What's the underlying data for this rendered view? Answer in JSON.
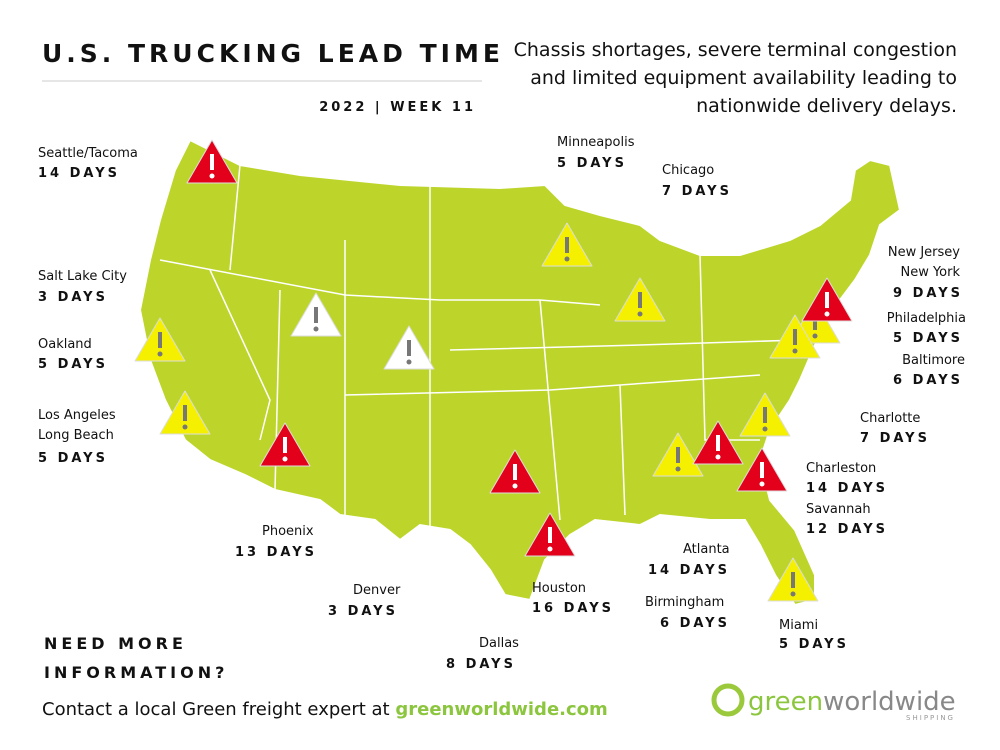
{
  "header": {
    "title": "U.S. TRUCKING LEAD TIME",
    "week": "2022 | WEEK 11",
    "description": [
      "Chassis shortages, severe terminal congestion",
      "and limited equipment availability leading to",
      "nationwide delivery delays."
    ]
  },
  "cities": [
    {
      "name": [
        "Seattle/Tacoma"
      ],
      "days": "14 DAYS"
    },
    {
      "name": [
        "Salt Lake City"
      ],
      "days": "3 DAYS"
    },
    {
      "name": [
        "Oakland"
      ],
      "days": "5 DAYS"
    },
    {
      "name": [
        "Los Angeles",
        "Long Beach"
      ],
      "days": "5 DAYS"
    },
    {
      "name": [
        "Phoenix"
      ],
      "days": "13 DAYS"
    },
    {
      "name": [
        "Denver"
      ],
      "days": "3 DAYS"
    },
    {
      "name": [
        "Dallas"
      ],
      "days": "8 DAYS"
    },
    {
      "name": [
        "Houston"
      ],
      "days": "16 DAYS"
    },
    {
      "name": [
        "Minneapolis"
      ],
      "days": "5 DAYS"
    },
    {
      "name": [
        "Chicago"
      ],
      "days": "7 DAYS"
    },
    {
      "name": [
        "New Jersey",
        "New York"
      ],
      "days": "9 DAYS"
    },
    {
      "name": [
        "Philadelphia"
      ],
      "days": "5 DAYS"
    },
    {
      "name": [
        "Baltimore"
      ],
      "days": "6 DAYS"
    },
    {
      "name": [
        "Charlotte"
      ],
      "days": "7 DAYS"
    },
    {
      "name": [
        "Charleston"
      ],
      "days": "14 DAYS"
    },
    {
      "name": [
        "Savannah"
      ],
      "days": "12 DAYS"
    },
    {
      "name": [
        "Atlanta"
      ],
      "days": "14 DAYS"
    },
    {
      "name": [
        "Birmingham"
      ],
      "days": "6 DAYS"
    },
    {
      "name": [
        "Miami"
      ],
      "days": "5 DAYS"
    }
  ],
  "footer": {
    "question": [
      "NEED MORE",
      "INFORMATION?"
    ],
    "contact": "Contact a local Green freight expert at ",
    "link": "greenworldwide.com"
  },
  "logo": {
    "green": "green",
    "rest": "worldwide",
    "sub": "SHIPPING"
  }
}
